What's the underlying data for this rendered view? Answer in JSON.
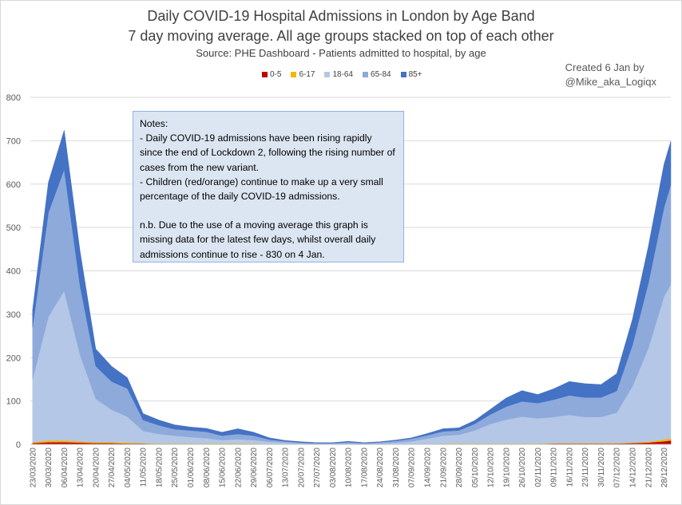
{
  "titles": {
    "line1": "Daily COVID-19 Hospital Admissions in London by Age Band",
    "line2": "7 day moving average. All age groups stacked on top of each other",
    "source": "Source:  PHE Dashboard - Patients admitted to hospital, by age"
  },
  "credit": {
    "line1": "Created 6 Jan by",
    "line2": "@Mike_aka_Logiqx"
  },
  "notes": {
    "heading": "Notes:",
    "p1": "- Daily COVID-19 admissions have been rising rapidly since the end of Lockdown 2,  following the rising number of cases from the new variant.",
    "p2": "- Children (red/orange) continue to make up a very small percentage of the daily COVID-19 admissions.",
    "p3": "n.b. Due to the use of a  moving average this graph is missing data for the latest few days, whilst overall daily admissions continue to rise - 830  on 4 Jan."
  },
  "colors": {
    "0-5": "#c00000",
    "6-17": "#f2b800",
    "18-64": "#b4c7e7",
    "65-84": "#8eaadb",
    "85+": "#4472c4"
  },
  "chart_data": {
    "type": "area",
    "stacked": true,
    "ylim": [
      0,
      800
    ],
    "yticks": [
      0,
      100,
      200,
      300,
      400,
      500,
      600,
      700,
      800
    ],
    "grid": true,
    "legend_position": "top",
    "xlabels": [
      "23/03/2020",
      "30/03/2020",
      "06/04/2020",
      "13/04/2020",
      "20/04/2020",
      "27/04/2020",
      "04/05/2020",
      "11/05/2020",
      "18/05/2020",
      "25/05/2020",
      "01/06/2020",
      "08/06/2020",
      "15/06/2020",
      "22/06/2020",
      "29/06/2020",
      "06/07/2020",
      "13/07/2020",
      "20/07/2020",
      "27/07/2020",
      "03/08/2020",
      "10/08/2020",
      "17/08/2020",
      "24/08/2020",
      "31/08/2020",
      "07/09/2020",
      "14/09/2020",
      "21/09/2020",
      "28/09/2020",
      "05/10/2020",
      "12/10/2020",
      "19/10/2020",
      "26/10/2020",
      "02/11/2020",
      "09/11/2020",
      "16/11/2020",
      "23/11/2020",
      "30/11/2020",
      "07/12/2020",
      "14/12/2020",
      "21/12/2020",
      "28/12/2020"
    ],
    "x": [
      "23/03/2020",
      "30/03/2020",
      "06/04/2020",
      "13/04/2020",
      "20/04/2020",
      "27/04/2020",
      "04/05/2020",
      "11/05/2020",
      "18/05/2020",
      "25/05/2020",
      "01/06/2020",
      "08/06/2020",
      "15/06/2020",
      "22/06/2020",
      "29/06/2020",
      "06/07/2020",
      "13/07/2020",
      "20/07/2020",
      "27/07/2020",
      "03/08/2020",
      "10/08/2020",
      "17/08/2020",
      "24/08/2020",
      "31/08/2020",
      "07/09/2020",
      "14/09/2020",
      "21/09/2020",
      "28/09/2020",
      "05/10/2020",
      "12/10/2020",
      "19/10/2020",
      "26/10/2020",
      "02/11/2020",
      "09/11/2020",
      "16/11/2020",
      "23/11/2020",
      "30/11/2020",
      "07/12/2020",
      "14/12/2020",
      "21/12/2020",
      "28/12/2020",
      "31/12/2020"
    ],
    "series": [
      {
        "name": "0-5",
        "values": [
          3,
          5,
          5,
          4,
          3,
          3,
          2,
          2,
          1,
          1,
          1,
          1,
          1,
          1,
          1,
          1,
          1,
          0,
          0,
          0,
          0,
          0,
          0,
          0,
          0,
          1,
          1,
          1,
          1,
          1,
          1,
          1,
          1,
          2,
          2,
          2,
          2,
          2,
          3,
          4,
          7,
          9
        ]
      },
      {
        "name": "6-17",
        "values": [
          2,
          4,
          4,
          3,
          2,
          2,
          2,
          1,
          1,
          1,
          1,
          1,
          1,
          1,
          1,
          0,
          0,
          0,
          0,
          0,
          0,
          0,
          0,
          0,
          0,
          0,
          1,
          1,
          1,
          1,
          1,
          1,
          1,
          1,
          1,
          1,
          1,
          1,
          1,
          2,
          4,
          5
        ]
      },
      {
        "name": "18-64",
        "values": [
          145,
          285,
          345,
          200,
          100,
          75,
          60,
          28,
          22,
          18,
          15,
          12,
          8,
          10,
          8,
          5,
          3,
          2,
          1,
          1,
          2,
          1,
          2,
          4,
          7,
          12,
          18,
          20,
          30,
          45,
          55,
          62,
          58,
          60,
          65,
          60,
          60,
          70,
          130,
          215,
          330,
          355
        ]
      },
      {
        "name": "65-84",
        "values": [
          120,
          240,
          280,
          160,
          75,
          65,
          65,
          25,
          20,
          15,
          15,
          15,
          10,
          12,
          10,
          5,
          3,
          2,
          2,
          2,
          3,
          2,
          3,
          4,
          6,
          8,
          10,
          10,
          15,
          22,
          30,
          35,
          35,
          40,
          45,
          45,
          45,
          50,
          95,
          150,
          205,
          230
        ]
      },
      {
        "name": "85+",
        "values": [
          40,
          70,
          90,
          80,
          40,
          35,
          25,
          15,
          12,
          10,
          8,
          8,
          8,
          12,
          8,
          4,
          2,
          2,
          1,
          1,
          2,
          1,
          1,
          2,
          2,
          4,
          6,
          6,
          8,
          12,
          20,
          25,
          20,
          25,
          32,
          32,
          30,
          40,
          60,
          85,
          100,
          100
        ]
      }
    ]
  }
}
